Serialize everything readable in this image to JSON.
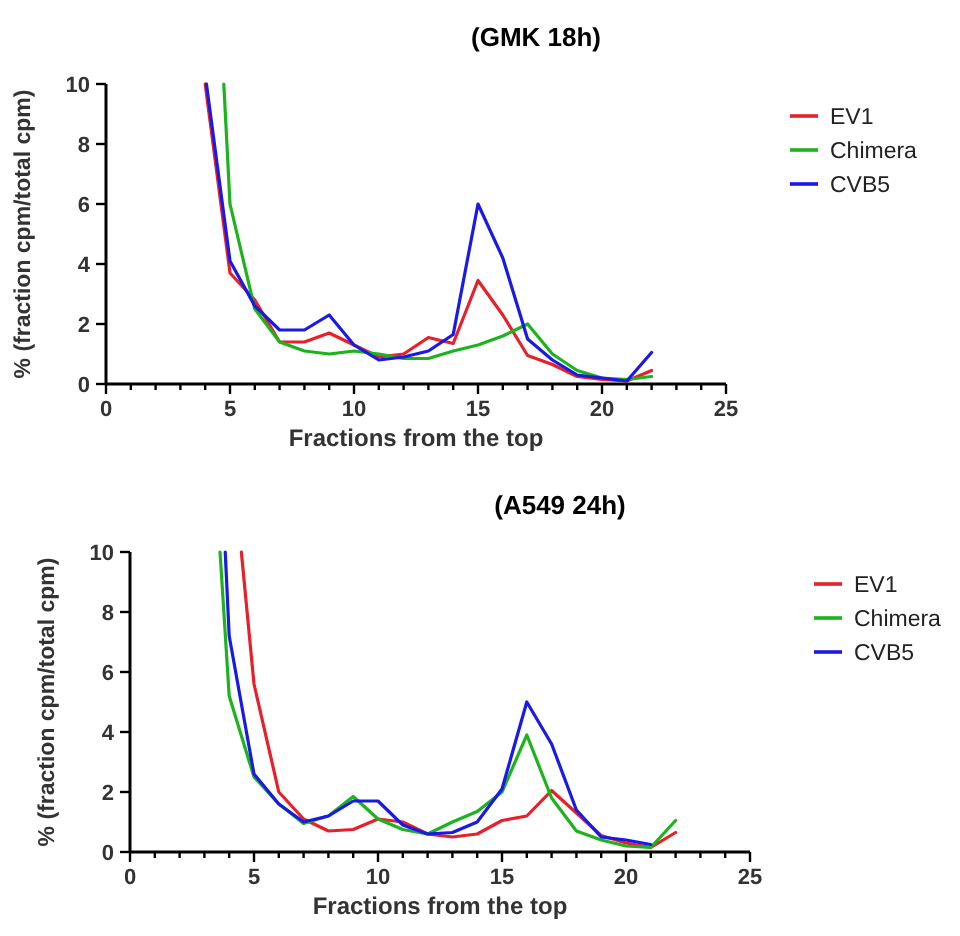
{
  "chart_data": [
    {
      "type": "line",
      "title": "(GMK 18h)",
      "xlabel": "Fractions from the top",
      "ylabel": "% (fraction cpm/total cpm)",
      "xlim": [
        0,
        25
      ],
      "ylim": [
        0,
        10
      ],
      "xticks": [
        0,
        {
          "value": 1,
          "label": null
        },
        {
          "value": 2,
          "label": null
        },
        {
          "value": 3,
          "label": null
        },
        {
          "value": 4,
          "label": null
        },
        5,
        {
          "value": 6,
          "label": null
        },
        {
          "value": 7,
          "label": null
        },
        {
          "value": 8,
          "label": null
        },
        {
          "value": 9,
          "label": null
        },
        10,
        {
          "value": 11,
          "label": null
        },
        {
          "value": 12,
          "label": null
        },
        {
          "value": 13,
          "label": null
        },
        {
          "value": 14,
          "label": null
        },
        15,
        {
          "value": 16,
          "label": null
        },
        {
          "value": 17,
          "label": null
        },
        {
          "value": 18,
          "label": null
        },
        {
          "value": 19,
          "label": null
        },
        20,
        {
          "value": 21,
          "label": null
        },
        {
          "value": 22,
          "label": null
        },
        {
          "value": 23,
          "label": null
        },
        {
          "value": 24,
          "label": null
        },
        25
      ],
      "yticks": [
        0,
        2,
        4,
        6,
        8,
        10
      ],
      "grid": false,
      "legend": "top right",
      "marker": "none",
      "line_style": "solid",
      "series": [
        {
          "name": "EV1",
          "color": "#e8202a",
          "x": [
            4,
            5,
            6,
            7,
            8,
            9,
            10,
            11,
            12,
            13,
            14,
            15,
            16,
            17,
            18,
            19,
            20,
            21,
            22
          ],
          "values": [
            10,
            3.7,
            2.8,
            1.4,
            1.4,
            1.7,
            1.3,
            0.9,
            1.0,
            1.55,
            1.35,
            3.45,
            2.3,
            0.95,
            0.65,
            0.25,
            0.15,
            0.1,
            0.45
          ]
        },
        {
          "name": "Chimera",
          "color": "#1db31d",
          "x": [
            4.75,
            5,
            6,
            7,
            8,
            9,
            10,
            11,
            12,
            13,
            14,
            15,
            16,
            17,
            18,
            19,
            20,
            21,
            22
          ],
          "values": [
            10,
            6.0,
            2.5,
            1.4,
            1.1,
            1.0,
            1.1,
            1.0,
            0.85,
            0.85,
            1.1,
            1.3,
            1.6,
            2.0,
            1.0,
            0.45,
            0.2,
            0.15,
            0.25
          ]
        },
        {
          "name": "CVB5",
          "color": "#1a1ae6",
          "x": [
            4.05,
            5,
            6,
            7,
            8,
            9,
            10,
            11,
            12,
            13,
            14,
            15,
            16,
            17,
            18,
            19,
            20,
            21,
            22
          ],
          "values": [
            10,
            4.1,
            2.6,
            1.8,
            1.8,
            2.3,
            1.3,
            0.8,
            0.9,
            1.1,
            1.65,
            6.0,
            4.2,
            1.5,
            0.8,
            0.3,
            0.2,
            0.1,
            1.05
          ]
        }
      ]
    },
    {
      "type": "line",
      "title": "(A549 24h)",
      "xlabel": "Fractions from the top",
      "ylabel": "% (fraction cpm/total cpm)",
      "xlim": [
        0,
        25
      ],
      "ylim": [
        0,
        10
      ],
      "xticks": [
        0,
        {
          "value": 1,
          "label": null
        },
        {
          "value": 2,
          "label": null
        },
        {
          "value": 3,
          "label": null
        },
        {
          "value": 4,
          "label": null
        },
        5,
        {
          "value": 6,
          "label": null
        },
        {
          "value": 7,
          "label": null
        },
        {
          "value": 8,
          "label": null
        },
        {
          "value": 9,
          "label": null
        },
        10,
        {
          "value": 11,
          "label": null
        },
        {
          "value": 12,
          "label": null
        },
        {
          "value": 13,
          "label": null
        },
        {
          "value": 14,
          "label": null
        },
        15,
        {
          "value": 16,
          "label": null
        },
        {
          "value": 17,
          "label": null
        },
        {
          "value": 18,
          "label": null
        },
        {
          "value": 19,
          "label": null
        },
        20,
        {
          "value": 21,
          "label": null
        },
        {
          "value": 22,
          "label": null
        },
        {
          "value": 23,
          "label": null
        },
        {
          "value": 24,
          "label": null
        },
        25
      ],
      "yticks": [
        0,
        2,
        4,
        6,
        8,
        10
      ],
      "grid": false,
      "legend": "top right",
      "marker": "none",
      "line_style": "solid",
      "series": [
        {
          "name": "EV1",
          "color": "#e8202a",
          "x": [
            4.49,
            5,
            6,
            7,
            8,
            9,
            10,
            11,
            12,
            13,
            14,
            15,
            16,
            17,
            18,
            19,
            20,
            21,
            22
          ],
          "values": [
            10,
            5.6,
            2.0,
            1.1,
            0.7,
            0.75,
            1.1,
            1.0,
            0.6,
            0.5,
            0.6,
            1.05,
            1.2,
            2.05,
            1.3,
            0.55,
            0.3,
            0.15,
            0.65
          ]
        },
        {
          "name": "Chimera",
          "color": "#1db31d",
          "x": [
            3.63,
            4,
            5,
            6,
            7,
            8,
            9,
            10,
            11,
            12,
            13,
            14,
            15,
            16,
            17,
            18,
            19,
            20,
            21,
            22
          ],
          "values": [
            10,
            5.2,
            2.5,
            1.6,
            0.95,
            1.2,
            1.85,
            1.1,
            0.75,
            0.6,
            1.0,
            1.35,
            2.0,
            3.9,
            1.8,
            0.7,
            0.4,
            0.2,
            0.15,
            1.05
          ]
        },
        {
          "name": "CVB5",
          "color": "#1a1ae6",
          "x": [
            3.84,
            4,
            5,
            6,
            7,
            8,
            9,
            10,
            11,
            12,
            13,
            14,
            15,
            16,
            17,
            18,
            19,
            20,
            21
          ],
          "values": [
            10,
            7.2,
            2.6,
            1.6,
            1.0,
            1.2,
            1.7,
            1.7,
            0.9,
            0.6,
            0.65,
            1.0,
            2.1,
            5.0,
            3.6,
            1.4,
            0.5,
            0.4,
            0.25
          ]
        }
      ]
    }
  ]
}
